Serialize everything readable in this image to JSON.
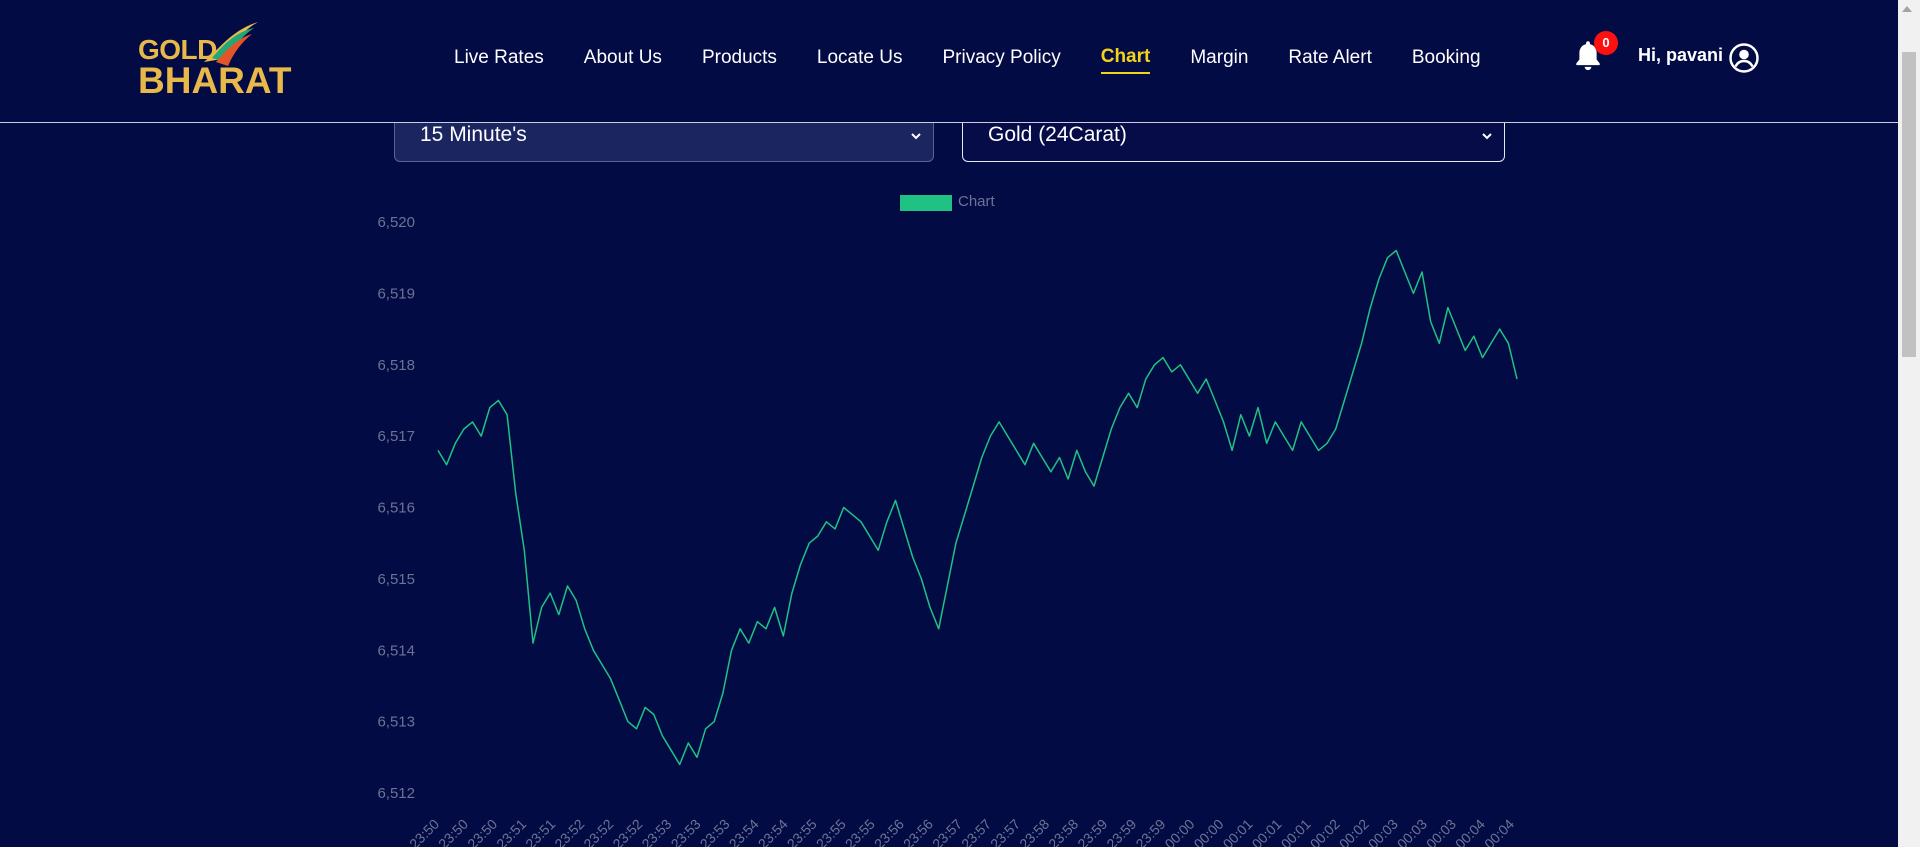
{
  "brand": {
    "logo_text_top": "GOLD",
    "logo_text_bottom": "BHARAT",
    "color": "#e8b84a"
  },
  "nav": {
    "items": [
      {
        "label": "Live Rates"
      },
      {
        "label": "About Us"
      },
      {
        "label": "Products"
      },
      {
        "label": "Locate Us"
      },
      {
        "label": "Privacy Policy"
      },
      {
        "label": "Chart",
        "active": true
      },
      {
        "label": "Margin"
      },
      {
        "label": "Rate Alert"
      },
      {
        "label": "Booking"
      }
    ],
    "active_color": "#f2d21b"
  },
  "notifications": {
    "icon": "bell-icon",
    "count": "0"
  },
  "user": {
    "greeting": "Hi, pavani",
    "icon": "user-circle-icon"
  },
  "filters": {
    "interval": {
      "selected": "15 Minute's"
    },
    "metal": {
      "selected": "Gold (24Carat)"
    }
  },
  "chart_data": {
    "type": "line",
    "legend": {
      "label": "Chart",
      "color": "#1fc283",
      "position": "top-center"
    },
    "ylim": [
      6512,
      6520
    ],
    "y_ticks": [
      "6,520",
      "6,519",
      "6,518",
      "6,517",
      "6,516",
      "6,515",
      "6,514",
      "6,513",
      "6,512"
    ],
    "x_tick_labels": [
      "23:50",
      "23:50",
      "23:50",
      "23:51",
      "23:51",
      "23:52",
      "23:52",
      "23:52",
      "23:53",
      "23:53",
      "23:53",
      "23:54",
      "23:54",
      "23:55",
      "23:55",
      "23:55",
      "23:56",
      "23:56",
      "23:57",
      "23:57",
      "23:57",
      "23:58",
      "23:58",
      "23:59",
      "23:59",
      "23:59",
      "00:00",
      "00:00",
      "00:01",
      "00:01",
      "00:01",
      "00:02",
      "00:02",
      "00:03",
      "00:03",
      "00:03",
      "00:04",
      "00:04"
    ],
    "series": [
      {
        "color": "#1fc283",
        "values": [
          6516.8,
          6516.6,
          6516.9,
          6517.1,
          6517.2,
          6517.0,
          6517.4,
          6517.5,
          6517.3,
          6516.2,
          6515.4,
          6514.1,
          6514.6,
          6514.8,
          6514.5,
          6514.9,
          6514.7,
          6514.3,
          6514.0,
          6513.8,
          6513.6,
          6513.3,
          6513.0,
          6512.9,
          6513.2,
          6513.1,
          6512.8,
          6512.6,
          6512.4,
          6512.7,
          6512.5,
          6512.9,
          6513.0,
          6513.4,
          6514.0,
          6514.3,
          6514.1,
          6514.4,
          6514.3,
          6514.6,
          6514.2,
          6514.8,
          6515.2,
          6515.5,
          6515.6,
          6515.8,
          6515.7,
          6516.0,
          6515.9,
          6515.8,
          6515.6,
          6515.4,
          6515.8,
          6516.1,
          6515.7,
          6515.3,
          6515.0,
          6514.6,
          6514.3,
          6514.9,
          6515.5,
          6515.9,
          6516.3,
          6516.7,
          6517.0,
          6517.2,
          6517.0,
          6516.8,
          6516.6,
          6516.9,
          6516.7,
          6516.5,
          6516.7,
          6516.4,
          6516.8,
          6516.5,
          6516.3,
          6516.7,
          6517.1,
          6517.4,
          6517.6,
          6517.4,
          6517.8,
          6518.0,
          6518.1,
          6517.9,
          6518.0,
          6517.8,
          6517.6,
          6517.8,
          6517.5,
          6517.2,
          6516.8,
          6517.3,
          6517.0,
          6517.4,
          6516.9,
          6517.2,
          6517.0,
          6516.8,
          6517.2,
          6517.0,
          6516.8,
          6516.9,
          6517.1,
          6517.5,
          6517.9,
          6518.3,
          6518.8,
          6519.2,
          6519.5,
          6519.6,
          6519.3,
          6519.0,
          6519.3,
          6518.6,
          6518.3,
          6518.8,
          6518.5,
          6518.2,
          6518.4,
          6518.1,
          6518.3,
          6518.5,
          6518.3,
          6517.8
        ]
      }
    ]
  },
  "colors": {
    "background": "#030b44",
    "line": "#1fc283",
    "axis_text": "#6d7394"
  }
}
